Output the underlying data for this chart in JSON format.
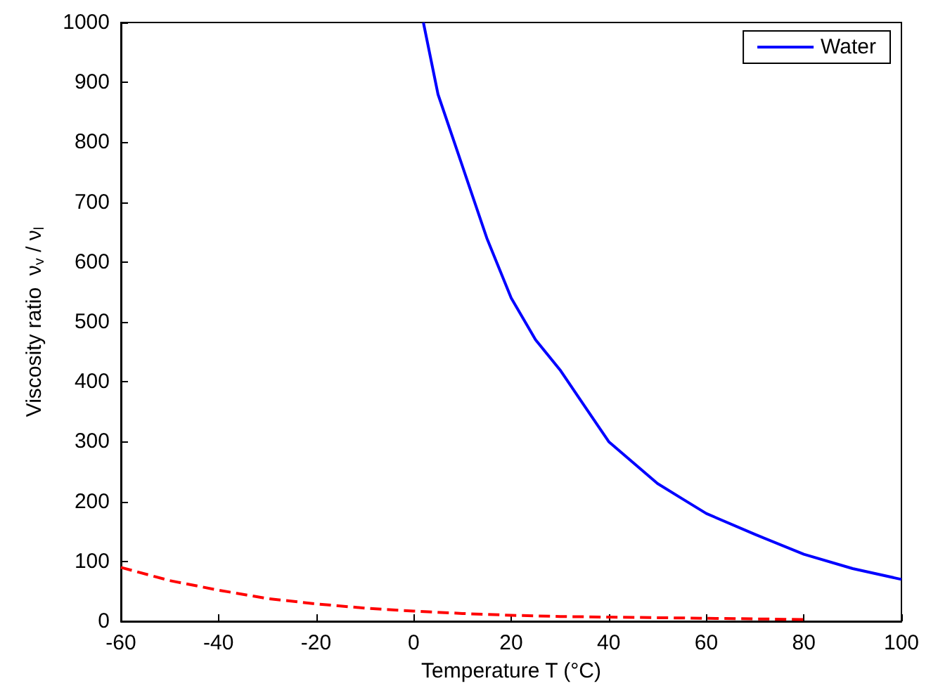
{
  "chart_data": {
    "type": "line",
    "xlabel": "Temperature T (°C)",
    "ylabel": "Viscosity ratio  ν$_{v}$ / ν$_{l}$",
    "xlim": [
      -60,
      100
    ],
    "ylim": [
      0,
      1000
    ],
    "xticks": [
      -60,
      -40,
      -20,
      0,
      20,
      40,
      60,
      80,
      100
    ],
    "yticks": [
      0,
      100,
      200,
      300,
      400,
      500,
      600,
      700,
      800,
      900,
      1000
    ],
    "grid": false,
    "legend": "top right",
    "marker": "none",
    "series": [
      {
        "name": "Water",
        "color": "#0000ff",
        "line_style": "solid",
        "x": [
          2,
          5,
          10,
          15,
          20,
          25,
          30,
          35,
          40,
          45,
          50,
          55,
          60,
          70,
          80,
          90,
          100
        ],
        "values": [
          1000,
          880,
          760,
          640,
          540,
          470,
          420,
          360,
          300,
          265,
          230,
          205,
          180,
          145,
          112,
          88,
          70
        ]
      },
      {
        "color": "#ff0000",
        "line_style": "dashed",
        "x": [
          -60,
          -50,
          -40,
          -30,
          -20,
          -10,
          0,
          10,
          20,
          30,
          40,
          50,
          60,
          70,
          80
        ],
        "values": [
          90,
          68,
          52,
          38,
          29,
          22,
          17,
          13,
          10,
          8,
          7,
          6,
          5,
          4,
          3
        ]
      }
    ]
  }
}
